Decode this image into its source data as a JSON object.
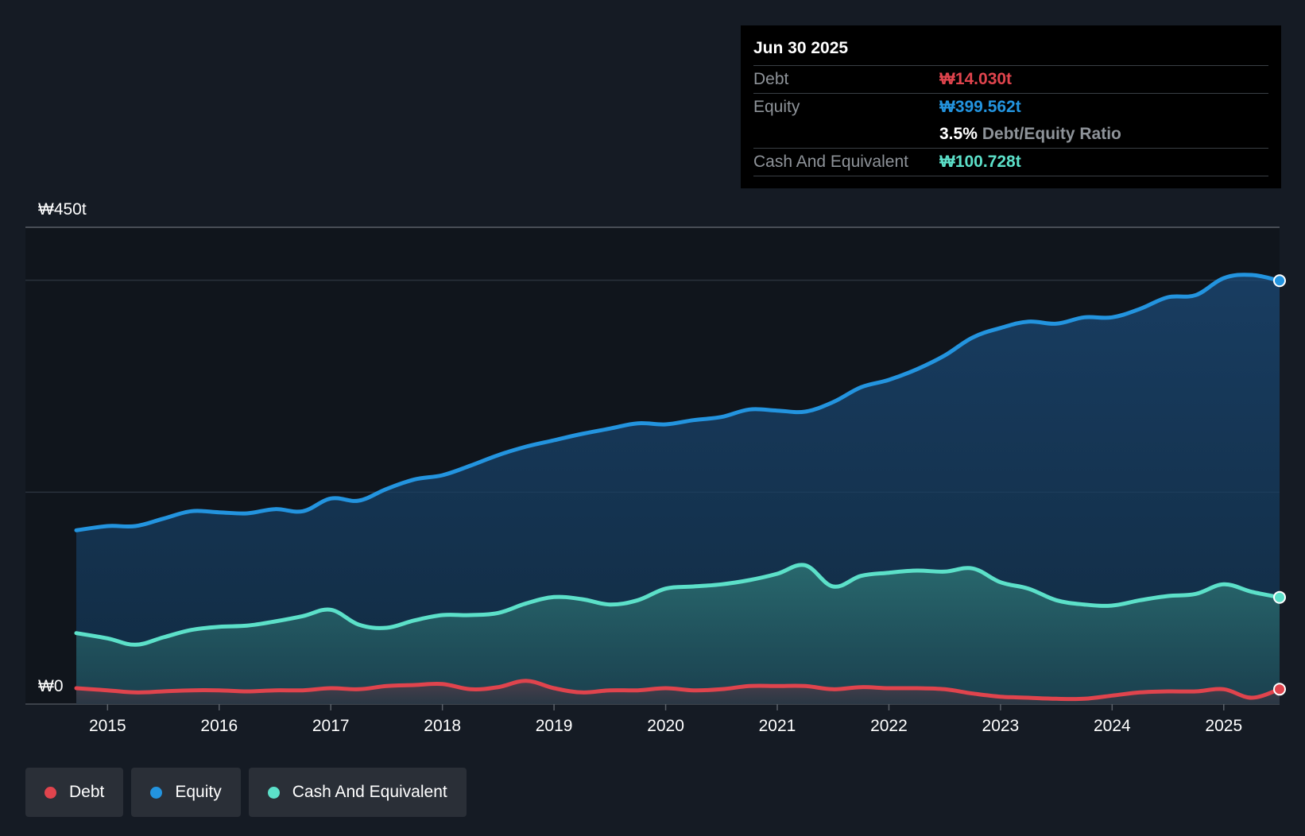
{
  "chart_data": {
    "type": "area",
    "title": "",
    "currency_symbol": "₩",
    "y_axis": {
      "top_label": "₩450t",
      "bottom_label": "₩0",
      "ylim": [
        0,
        450
      ],
      "gridlines": [
        0,
        200,
        400,
        450
      ]
    },
    "x_ticks": [
      "2015",
      "2016",
      "2017",
      "2018",
      "2019",
      "2020",
      "2021",
      "2022",
      "2023",
      "2024",
      "2025"
    ],
    "x_range": [
      2014.72,
      2025.5
    ],
    "series": [
      {
        "name": "Equity",
        "color": "#2394df",
        "points": [
          [
            2014.72,
            164
          ],
          [
            2015.0,
            168
          ],
          [
            2015.25,
            168
          ],
          [
            2015.5,
            175
          ],
          [
            2015.75,
            182
          ],
          [
            2016.0,
            181
          ],
          [
            2016.25,
            180
          ],
          [
            2016.5,
            184
          ],
          [
            2016.75,
            182
          ],
          [
            2017.0,
            194
          ],
          [
            2017.25,
            192
          ],
          [
            2017.5,
            203
          ],
          [
            2017.75,
            212
          ],
          [
            2018.0,
            216
          ],
          [
            2018.25,
            225
          ],
          [
            2018.5,
            235
          ],
          [
            2018.75,
            243
          ],
          [
            2019.0,
            249
          ],
          [
            2019.25,
            255
          ],
          [
            2019.5,
            260
          ],
          [
            2019.75,
            265
          ],
          [
            2020.0,
            264
          ],
          [
            2020.25,
            268
          ],
          [
            2020.5,
            271
          ],
          [
            2020.75,
            278
          ],
          [
            2021.0,
            277
          ],
          [
            2021.25,
            276
          ],
          [
            2021.5,
            285
          ],
          [
            2021.75,
            299
          ],
          [
            2022.0,
            306
          ],
          [
            2022.25,
            316
          ],
          [
            2022.5,
            329
          ],
          [
            2022.75,
            346
          ],
          [
            2023.0,
            355
          ],
          [
            2023.25,
            361
          ],
          [
            2023.5,
            359
          ],
          [
            2023.75,
            365
          ],
          [
            2024.0,
            365
          ],
          [
            2024.25,
            373
          ],
          [
            2024.5,
            384
          ],
          [
            2024.75,
            386
          ],
          [
            2025.0,
            402
          ],
          [
            2025.25,
            405
          ],
          [
            2025.5,
            399.562
          ]
        ]
      },
      {
        "name": "Cash And Equivalent",
        "color": "#5ce0c9",
        "points": [
          [
            2014.72,
            67
          ],
          [
            2015.0,
            62
          ],
          [
            2015.25,
            56
          ],
          [
            2015.5,
            63
          ],
          [
            2015.75,
            70
          ],
          [
            2016.0,
            73
          ],
          [
            2016.25,
            74
          ],
          [
            2016.5,
            78
          ],
          [
            2016.75,
            83
          ],
          [
            2017.0,
            89
          ],
          [
            2017.25,
            75
          ],
          [
            2017.5,
            72
          ],
          [
            2017.75,
            79
          ],
          [
            2018.0,
            84
          ],
          [
            2018.25,
            84
          ],
          [
            2018.5,
            86
          ],
          [
            2018.75,
            95
          ],
          [
            2019.0,
            101
          ],
          [
            2019.25,
            99
          ],
          [
            2019.5,
            94
          ],
          [
            2019.75,
            98
          ],
          [
            2020.0,
            109
          ],
          [
            2020.25,
            111
          ],
          [
            2020.5,
            113
          ],
          [
            2020.75,
            117
          ],
          [
            2021.0,
            123
          ],
          [
            2021.25,
            131
          ],
          [
            2021.5,
            111
          ],
          [
            2021.75,
            121
          ],
          [
            2022.0,
            124
          ],
          [
            2022.25,
            126
          ],
          [
            2022.5,
            125
          ],
          [
            2022.75,
            128
          ],
          [
            2023.0,
            115
          ],
          [
            2023.25,
            109
          ],
          [
            2023.5,
            98
          ],
          [
            2023.75,
            94
          ],
          [
            2024.0,
            93
          ],
          [
            2024.25,
            98
          ],
          [
            2024.5,
            102
          ],
          [
            2024.75,
            104
          ],
          [
            2025.0,
            113
          ],
          [
            2025.25,
            106
          ],
          [
            2025.5,
            100.728
          ]
        ]
      },
      {
        "name": "Debt",
        "color": "#e0444d",
        "points": [
          [
            2014.72,
            15
          ],
          [
            2015.0,
            13
          ],
          [
            2015.25,
            11
          ],
          [
            2015.5,
            12
          ],
          [
            2015.75,
            13
          ],
          [
            2016.0,
            13
          ],
          [
            2016.25,
            12
          ],
          [
            2016.5,
            13
          ],
          [
            2016.75,
            13
          ],
          [
            2017.0,
            15
          ],
          [
            2017.25,
            14
          ],
          [
            2017.5,
            17
          ],
          [
            2017.75,
            18
          ],
          [
            2018.0,
            19
          ],
          [
            2018.25,
            14
          ],
          [
            2018.5,
            16
          ],
          [
            2018.75,
            22
          ],
          [
            2019.0,
            15
          ],
          [
            2019.25,
            11
          ],
          [
            2019.5,
            13
          ],
          [
            2019.75,
            13
          ],
          [
            2020.0,
            15
          ],
          [
            2020.25,
            13
          ],
          [
            2020.5,
            14
          ],
          [
            2020.75,
            17
          ],
          [
            2021.0,
            17
          ],
          [
            2021.25,
            17
          ],
          [
            2021.5,
            14
          ],
          [
            2021.75,
            16
          ],
          [
            2022.0,
            15
          ],
          [
            2022.25,
            15
          ],
          [
            2022.5,
            14
          ],
          [
            2022.75,
            10
          ],
          [
            2023.0,
            7
          ],
          [
            2023.25,
            6
          ],
          [
            2023.5,
            5
          ],
          [
            2023.75,
            5
          ],
          [
            2024.0,
            8
          ],
          [
            2024.25,
            11
          ],
          [
            2024.5,
            12
          ],
          [
            2024.75,
            12
          ],
          [
            2025.0,
            14
          ],
          [
            2025.25,
            6
          ],
          [
            2025.5,
            14.03
          ]
        ]
      }
    ]
  },
  "tooltip": {
    "date": "Jun 30 2025",
    "debt_label": "Debt",
    "debt_value": "₩14.030t",
    "debt_color": "#e0444d",
    "equity_label": "Equity",
    "equity_value": "₩399.562t",
    "equity_color": "#2394df",
    "ratio_value": "3.5%",
    "ratio_label": "Debt/Equity Ratio",
    "cash_label": "Cash And Equivalent",
    "cash_value": "₩100.728t",
    "cash_color": "#5ce0c9"
  },
  "legend": [
    {
      "label": "Debt",
      "color": "#e0444d"
    },
    {
      "label": "Equity",
      "color": "#2394df"
    },
    {
      "label": "Cash And Equivalent",
      "color": "#5ce0c9"
    }
  ]
}
